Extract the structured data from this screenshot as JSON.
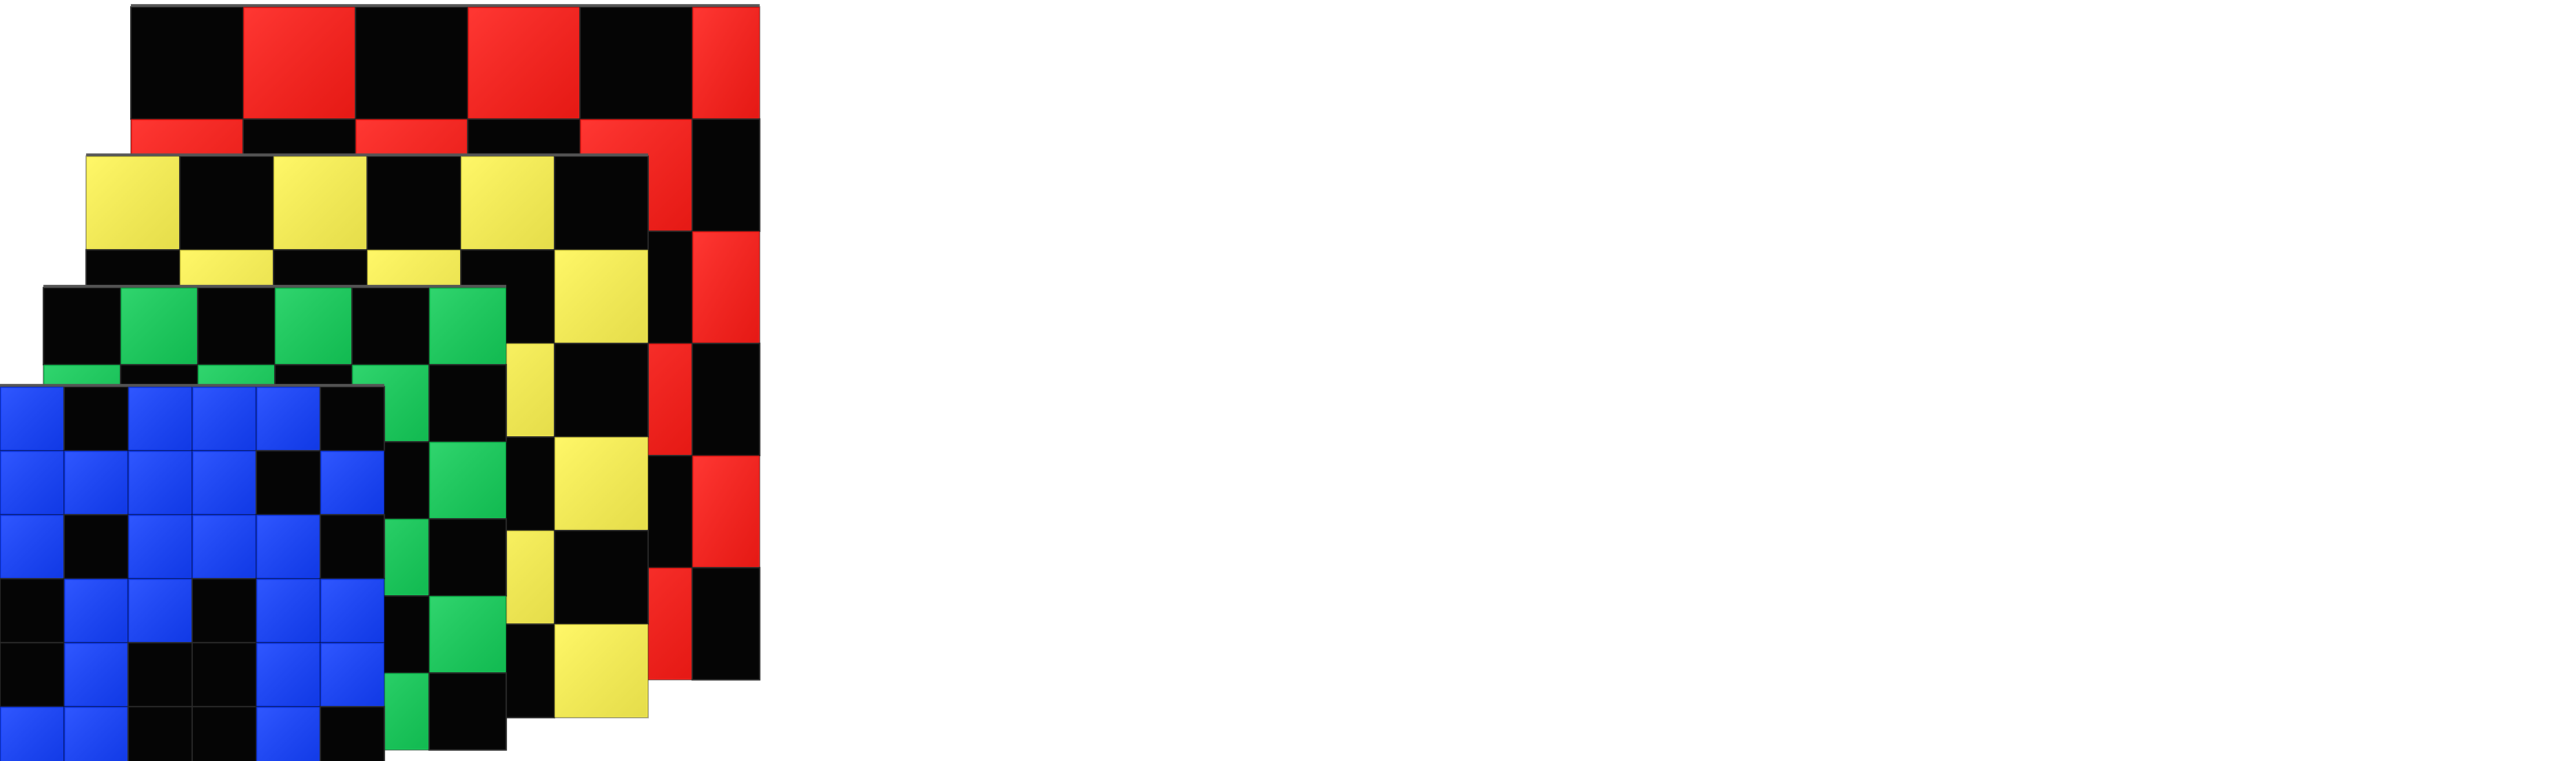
{
  "colors": {
    "background": "#ffffff",
    "dark_cell": "#050505",
    "red": "#ff1c17",
    "yellow": "#fff653",
    "green": "#14cf5a",
    "blue": "#1340ff"
  },
  "layers": [
    {
      "name": "red-layer",
      "color": "red",
      "rows": [
        "010101",
        "101010",
        "010101",
        "101010",
        "010101",
        "101010"
      ]
    },
    {
      "name": "yellow-layer",
      "color": "yellow",
      "rows": [
        "101010",
        "010101",
        "101010",
        "010101",
        "101010",
        "010101"
      ]
    },
    {
      "name": "green-layer",
      "color": "green",
      "rows": [
        "010101",
        "101010",
        "010101",
        "101010",
        "010101",
        "101010"
      ]
    },
    {
      "name": "blue-layer",
      "color": "blue",
      "rows": [
        "101110",
        "111101",
        "101110",
        "011011",
        "010011",
        "110010"
      ]
    }
  ]
}
